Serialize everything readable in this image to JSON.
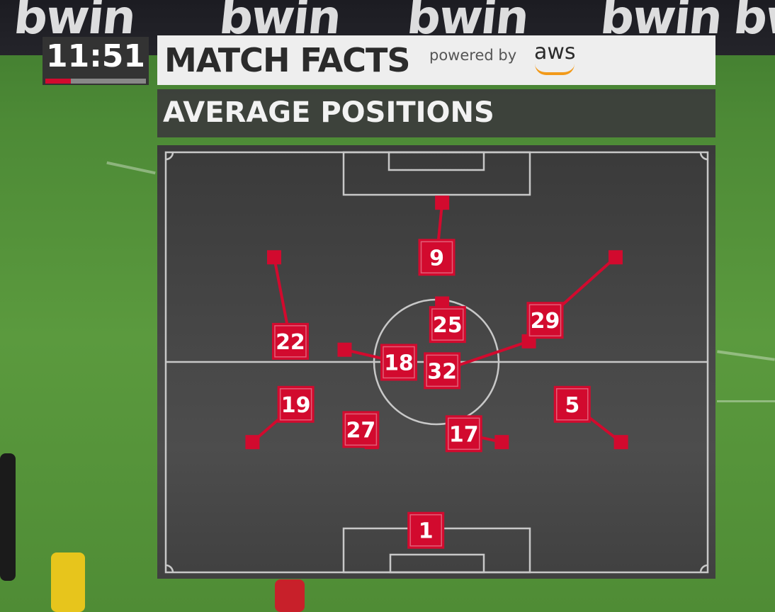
{
  "background": {
    "ad_boards": [
      "bwin",
      "bwin",
      "bwin",
      "bwin",
      "bwin"
    ]
  },
  "clock": {
    "time": "11:51",
    "half_progress": 0.25
  },
  "header": {
    "title": "MATCH FACTS",
    "powered_by": "powered by",
    "sponsor": "aws"
  },
  "section": {
    "title": "AVERAGE POSITIONS"
  },
  "colors": {
    "marker": "#d20a2e",
    "panel": "#404040",
    "pitch_lines": "#c8c8c8",
    "progress": "#d20a2e"
  },
  "players": [
    {
      "number": "9",
      "with_ball": [
        0.5,
        0.25
      ],
      "without_ball": [
        0.51,
        0.12
      ]
    },
    {
      "number": "25",
      "with_ball": [
        0.52,
        0.41
      ],
      "without_ball": [
        0.51,
        0.36
      ]
    },
    {
      "number": "29",
      "with_ball": [
        0.7,
        0.4
      ],
      "without_ball": [
        0.83,
        0.25
      ]
    },
    {
      "number": "22",
      "with_ball": [
        0.23,
        0.45
      ],
      "without_ball": [
        0.2,
        0.25
      ]
    },
    {
      "number": "18",
      "with_ball": [
        0.43,
        0.5
      ],
      "without_ball": [
        0.33,
        0.47
      ]
    },
    {
      "number": "32",
      "with_ball": [
        0.51,
        0.52
      ],
      "without_ball": [
        0.67,
        0.45
      ]
    },
    {
      "number": "19",
      "with_ball": [
        0.24,
        0.6
      ],
      "without_ball": [
        0.16,
        0.69
      ]
    },
    {
      "number": "5",
      "with_ball": [
        0.75,
        0.6
      ],
      "without_ball": [
        0.84,
        0.69
      ]
    },
    {
      "number": "27",
      "with_ball": [
        0.36,
        0.66
      ],
      "without_ball": [
        0.38,
        0.69
      ]
    },
    {
      "number": "17",
      "with_ball": [
        0.55,
        0.67
      ],
      "without_ball": [
        0.62,
        0.69
      ]
    },
    {
      "number": "1",
      "with_ball": [
        0.48,
        0.9
      ],
      "without_ball": null
    }
  ]
}
